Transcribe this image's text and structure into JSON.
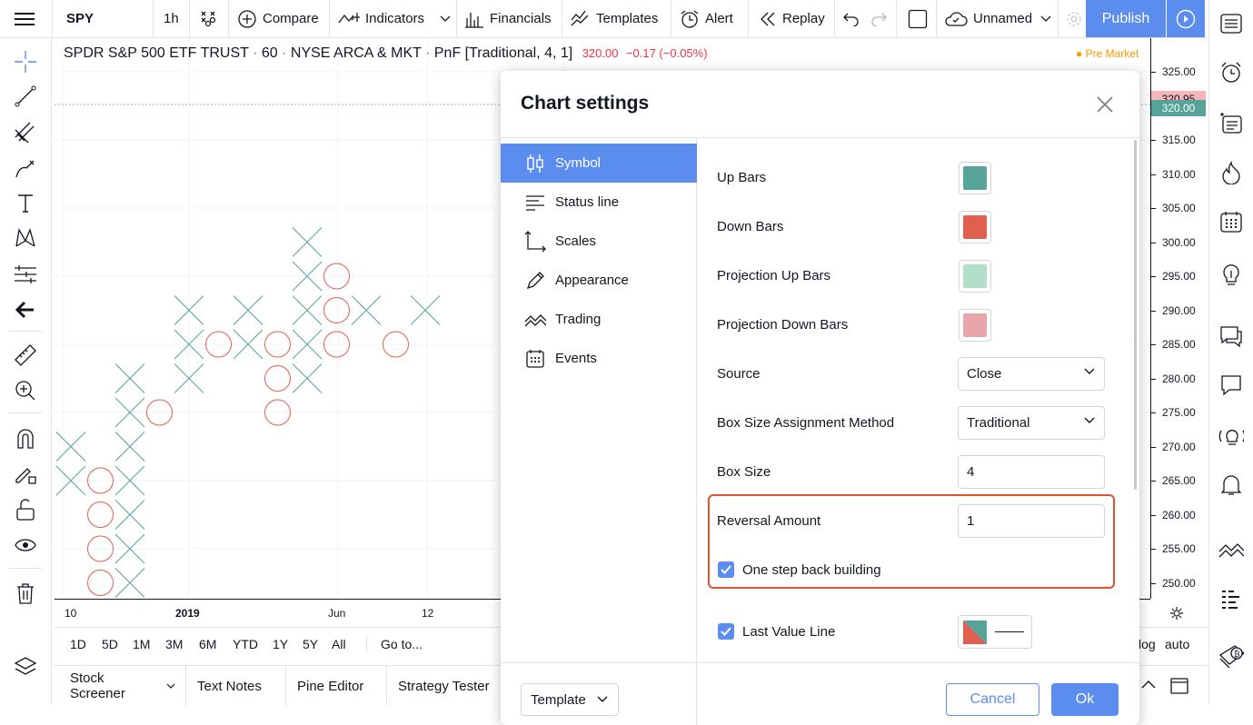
{
  "toolbar": {
    "symbol": "SPY",
    "interval": "1h",
    "compare": "Compare",
    "indicators": "Indicators",
    "financials": "Financials",
    "templates": "Templates",
    "alert": "Alert",
    "replay": "Replay",
    "layout_name": "Unnamed",
    "publish": "Publish"
  },
  "legend": {
    "name": "SPDR S&P 500 ETF TRUST",
    "interval": "60",
    "exchange": "NYSE ARCA & MKT",
    "style": "PnF [Traditional, 4, 1]",
    "price": "320.00",
    "change": "−0.17 (−0.05%)",
    "session": "Pre Market"
  },
  "price_axis": {
    "labels": [
      "325.00",
      "315.00",
      "310.00",
      "305.00",
      "300.00",
      "295.00",
      "290.00",
      "285.00",
      "280.00",
      "275.00",
      "270.00",
      "265.00",
      "260.00",
      "255.00",
      "250.00"
    ],
    "badge_high": "320.95",
    "badge_last": "320.00"
  },
  "time_axis": {
    "labels": [
      "10",
      "2019",
      "Jun",
      "12"
    ]
  },
  "ranges": {
    "items": [
      "1D",
      "5D",
      "1M",
      "3M",
      "6M",
      "YTD",
      "1Y",
      "5Y",
      "All"
    ],
    "goto": "Go to...",
    "log": "log",
    "auto": "auto"
  },
  "bottom_tabs": {
    "items": [
      "Stock Screener",
      "Text Notes",
      "Pine Editor",
      "Strategy Tester"
    ]
  },
  "dialog": {
    "title": "Chart settings",
    "nav": [
      "Symbol",
      "Status line",
      "Scales",
      "Appearance",
      "Trading",
      "Events"
    ],
    "up_bars": "Up Bars",
    "down_bars": "Down Bars",
    "proj_up_bars": "Projection Up Bars",
    "proj_down_bars": "Projection Down Bars",
    "source_label": "Source",
    "source_value": "Close",
    "box_method_label": "Box Size Assignment Method",
    "box_method_value": "Traditional",
    "box_size_label": "Box Size",
    "box_size_value": "4",
    "reversal_label": "Reversal Amount",
    "reversal_value": "1",
    "one_step_label": "One step back building",
    "last_value_label": "Last Value Line",
    "template_label": "Template",
    "cancel": "Cancel",
    "ok": "Ok"
  },
  "colors": {
    "up": "#56a39a",
    "down": "#e0604f",
    "proj_up": "#b2dfc8",
    "proj_down": "#e8a6ab",
    "accent": "#5b8def"
  },
  "chart_data": {
    "type": "point-and-figure",
    "columns": [
      {
        "kind": "X",
        "from": 265,
        "to": 270
      },
      {
        "kind": "O",
        "from": 265,
        "to": 250
      },
      {
        "kind": "X",
        "from": 250,
        "to": 280
      },
      {
        "kind": "O",
        "from": 275,
        "to": 275
      },
      {
        "kind": "X",
        "from": 280,
        "to": 290
      },
      {
        "kind": "O",
        "from": 285,
        "to": 285
      },
      {
        "kind": "X",
        "from": 285,
        "to": 290
      },
      {
        "kind": "O",
        "from": 285,
        "to": 275
      },
      {
        "kind": "X",
        "from": 280,
        "to": 300
      },
      {
        "kind": "O",
        "from": 295,
        "to": 285
      },
      {
        "kind": "X",
        "from": 290,
        "to": 290
      },
      {
        "kind": "O",
        "from": 285,
        "to": 285
      },
      {
        "kind": "X",
        "from": 290,
        "to": 290
      }
    ]
  }
}
